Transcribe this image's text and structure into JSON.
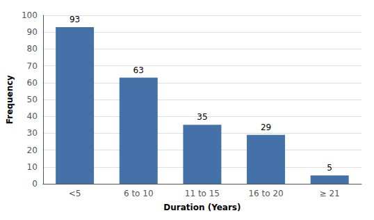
{
  "chart_data": {
    "type": "bar",
    "categories": [
      "<5",
      "6 to 10",
      "11 to 15",
      "16 to 20",
      "≥ 21"
    ],
    "values": [
      93,
      63,
      35,
      29,
      5
    ],
    "color": "#4472a8",
    "xlabel": "Duration (Years)",
    "ylabel": "Frequency",
    "ylim": [
      0,
      100
    ],
    "yticks": [
      0,
      10,
      20,
      30,
      40,
      50,
      60,
      70,
      80,
      90,
      100
    ],
    "grid": true,
    "data_labels": true
  }
}
